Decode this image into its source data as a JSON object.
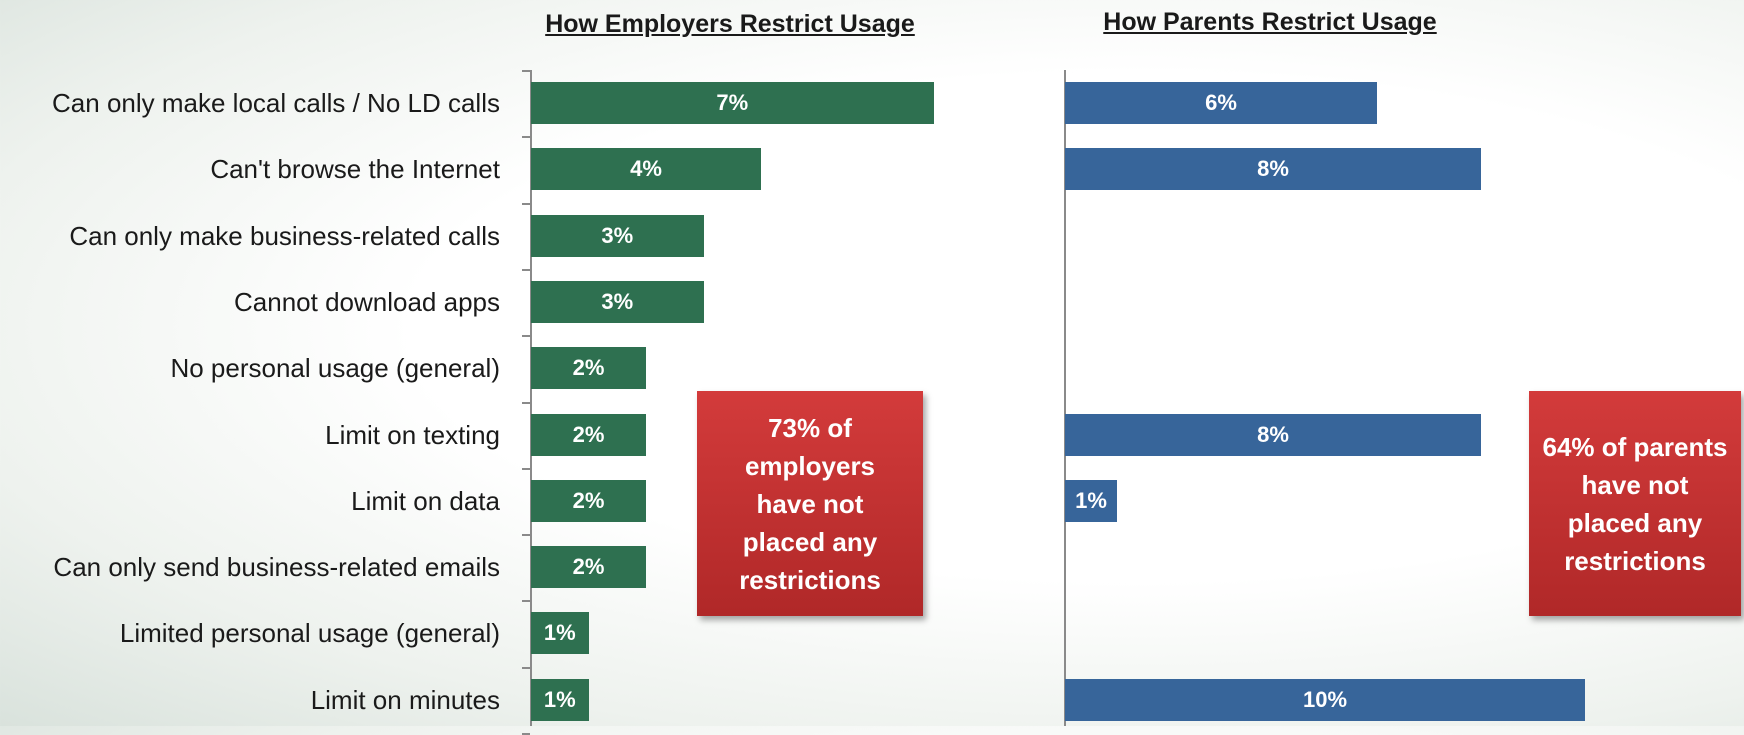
{
  "chart_data": [
    {
      "type": "bar",
      "orientation": "horizontal",
      "title": "How Employers Restrict Usage",
      "categories": [
        "Can only make local calls / No LD calls",
        "Can't browse the Internet",
        "Can only make business-related calls",
        "Cannot download apps",
        "No personal usage  (general)",
        "Limit on texting",
        "Limit on data",
        "Can only send business-related emails",
        "Limited personal usage (general)",
        "Limit on minutes"
      ],
      "values": [
        7,
        4,
        3,
        3,
        2,
        2,
        2,
        2,
        1,
        1
      ],
      "value_labels": [
        "7%",
        "4%",
        "3%",
        "3%",
        "2%",
        "2%",
        "2%",
        "2%",
        "1%",
        "1%"
      ],
      "color": "#2e7050",
      "callout": "73% of employers have not placed any restrictions"
    },
    {
      "type": "bar",
      "orientation": "horizontal",
      "title": "How Parents Restrict Usage",
      "categories": [
        "Can only make local calls / No LD calls",
        "Can't browse the Internet",
        "Can only make business-related calls",
        "Cannot download apps",
        "No personal usage  (general)",
        "Limit on texting",
        "Limit on data",
        "Can only send business-related emails",
        "Limited personal usage (general)",
        "Limit on minutes"
      ],
      "values": [
        6,
        8,
        null,
        null,
        null,
        8,
        1,
        null,
        null,
        10
      ],
      "value_labels": [
        "6%",
        "8%",
        "",
        "",
        "",
        "8%",
        "1%",
        "",
        "",
        "10%"
      ],
      "color": "#37659a",
      "callout": "64% of parents have not placed any restrictions"
    }
  ],
  "callout_color": "#c53030"
}
